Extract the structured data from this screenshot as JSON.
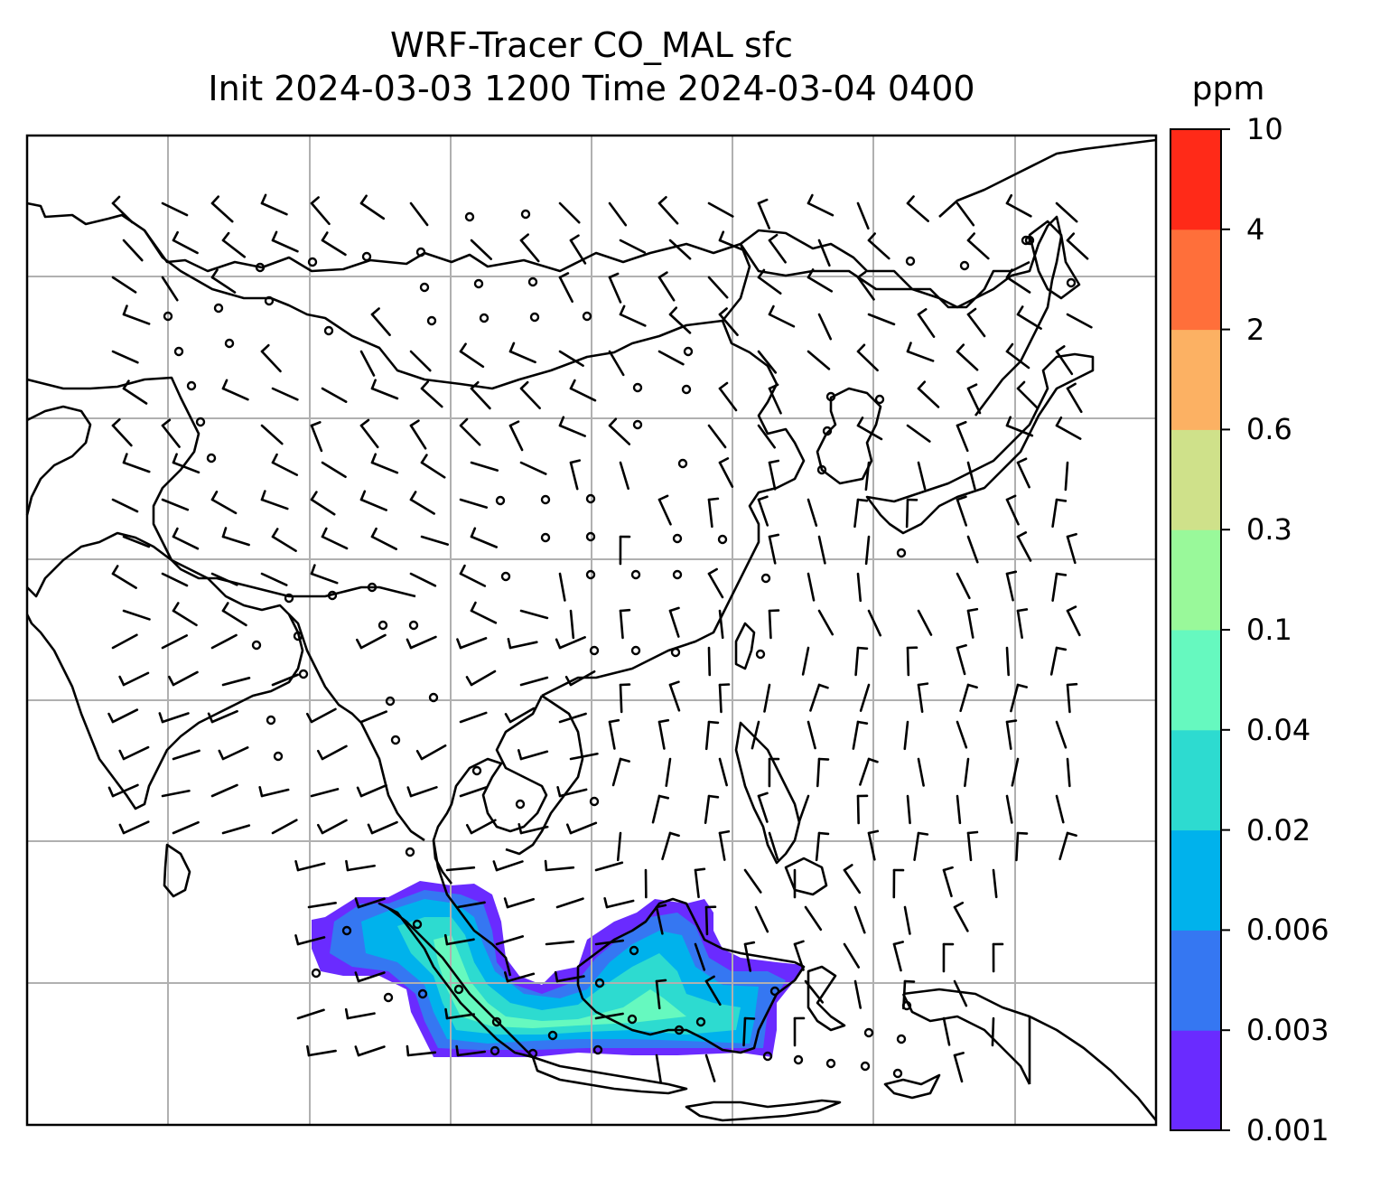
{
  "title": {
    "line1": "WRF-Tracer CO_MAL sfc",
    "line2": "Init 2024-03-03 1200 Time 2024-03-04 0400"
  },
  "colorbar": {
    "unit": "ppm",
    "ticks": [
      "0.001",
      "0.003",
      "0.006",
      "0.02",
      "0.04",
      "0.1",
      "0.3",
      "0.6",
      "2",
      "4",
      "10"
    ],
    "colors": [
      "#6a2bff",
      "#3577f2",
      "#00b2ec",
      "#2ddbd0",
      "#66f9bf",
      "#99f99a",
      "#cfe18a",
      "#fcb163",
      "#ff6f3a",
      "#ff2a18"
    ]
  },
  "map": {
    "gridlines": true,
    "coastline_color": "#000000",
    "grid_color": "#b0b0b0",
    "field": "CO_MAL tracer concentration",
    "barbs": "wind barbs",
    "calm_marker": "circle"
  }
}
